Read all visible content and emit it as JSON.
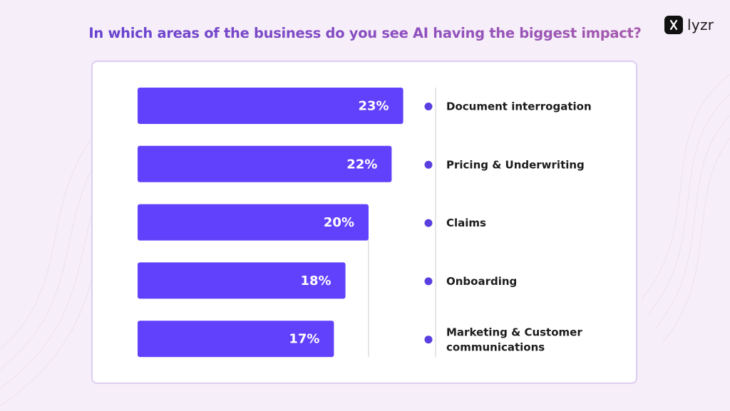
{
  "title": "In which areas of the business do you see AI having the biggest impact?",
  "brand": {
    "name": "lyzr",
    "icon": "lyzr-logo-icon"
  },
  "colors": {
    "bar": "#6141fb",
    "dot": "#5a3fe0",
    "divider": "#cccccc"
  },
  "chart_data": {
    "type": "bar",
    "orientation": "horizontal",
    "categories": [
      "Document interrogation",
      "Pricing & Underwriting",
      "Claims",
      "Onboarding",
      "Marketing & Customer communications"
    ],
    "values": [
      23,
      22,
      20,
      18,
      17
    ],
    "value_labels": [
      "23%",
      "22%",
      "20%",
      "18%",
      "17%"
    ],
    "unit": "%",
    "legend": "right",
    "grid": false
  }
}
